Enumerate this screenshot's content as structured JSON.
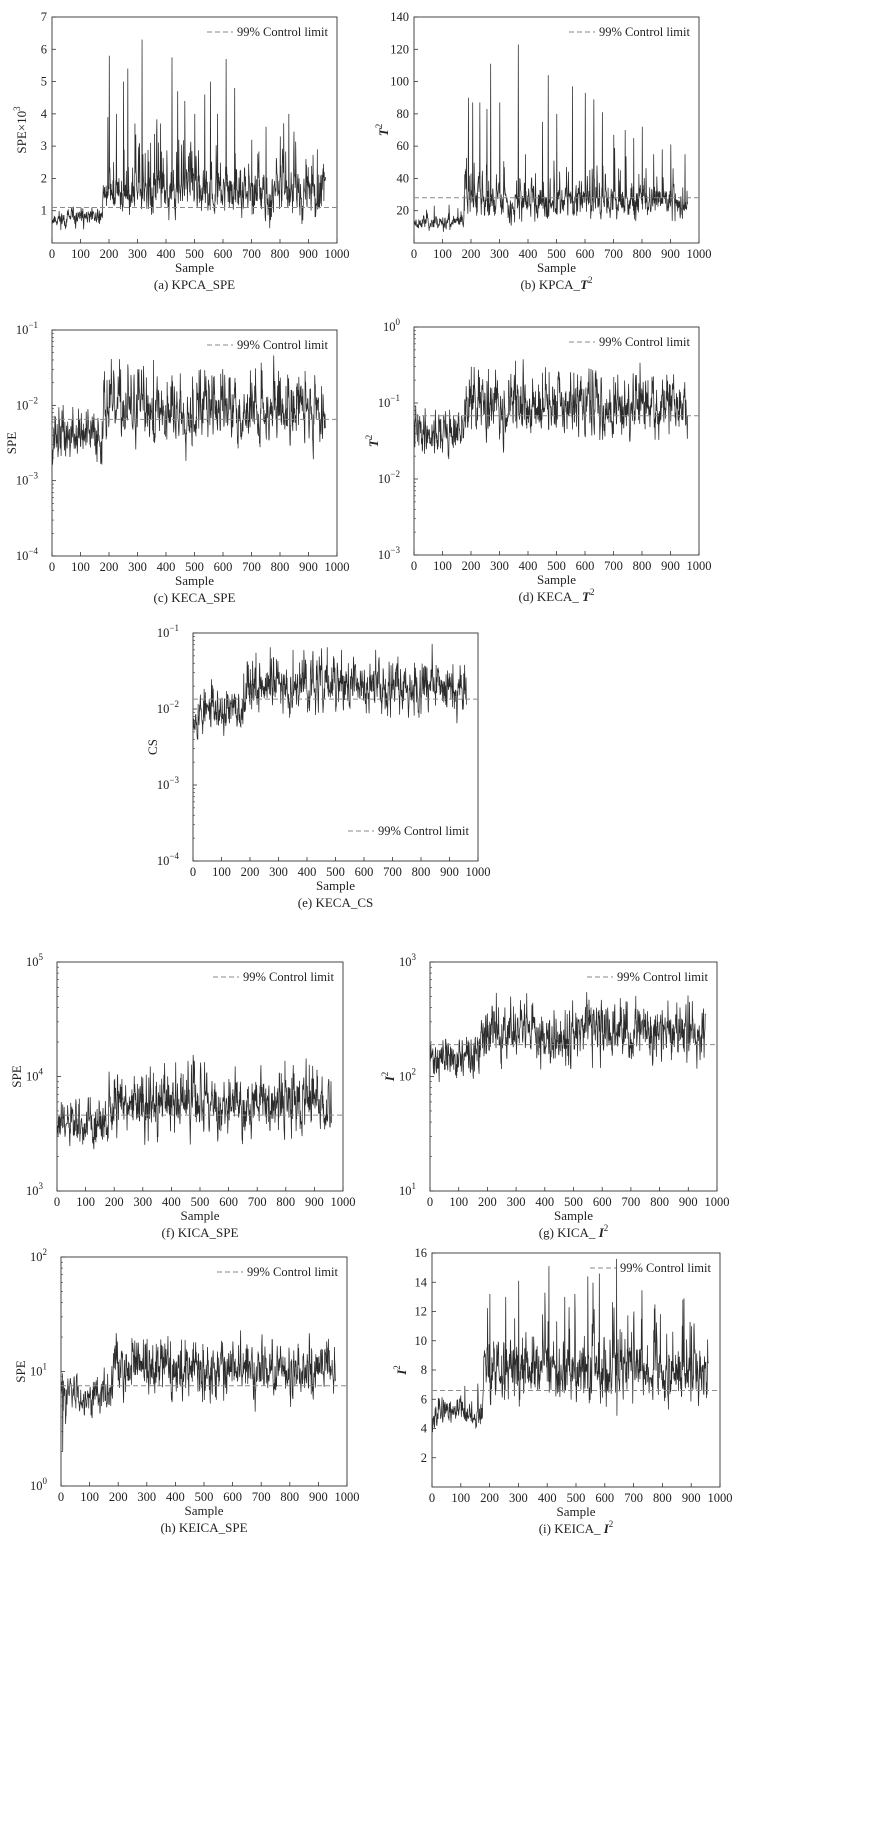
{
  "figure": {
    "colors": {
      "series": "#2b2b2b",
      "limit": "#8a8a8a",
      "axis": "#333333"
    },
    "legend_label": "99% Control limit",
    "xlabel": "Sample"
  },
  "chart_data": [
    {
      "id": "a",
      "type": "line",
      "scale": "linear",
      "caption": "(a) KPCA_SPE",
      "xlabel": "Sample",
      "ylabel": "SPE×10",
      "ylabel_sup": "3",
      "ylabel_italic": false,
      "xlim": [
        0,
        1000
      ],
      "ylim": [
        0,
        7
      ],
      "xticks": [
        "0",
        "100",
        "200",
        "300",
        "400",
        "500",
        "600",
        "700",
        "800",
        "900",
        "1000"
      ],
      "yticks": [
        {
          "v": 1,
          "t": "1"
        },
        {
          "v": 2,
          "t": "2"
        },
        {
          "v": 3,
          "t": "3"
        },
        {
          "v": 4,
          "t": "4"
        },
        {
          "v": 5,
          "t": "5"
        },
        {
          "v": 6,
          "t": "6"
        },
        {
          "v": 7,
          "t": "7"
        }
      ],
      "legend": {
        "label": "99% Control limit",
        "position": "top-right"
      },
      "control_limit": 1.1,
      "n": 960,
      "seed": 11,
      "phase1": {
        "end": 175,
        "base": 0.75,
        "spread": 0.5
      },
      "phase2": {
        "base": 1.5,
        "spread": 1.2
      },
      "peaks": [
        [
          195,
          3.9
        ],
        [
          200,
          5.8
        ],
        [
          225,
          4.0
        ],
        [
          250,
          5.0
        ],
        [
          265,
          5.4
        ],
        [
          290,
          3.7
        ],
        [
          315,
          6.3
        ],
        [
          345,
          3.1
        ],
        [
          380,
          3.7
        ],
        [
          420,
          5.75
        ],
        [
          440,
          4.7
        ],
        [
          465,
          4.4
        ],
        [
          500,
          4.0
        ],
        [
          535,
          4.6
        ],
        [
          555,
          5.0
        ],
        [
          580,
          4.0
        ],
        [
          610,
          5.7
        ],
        [
          640,
          4.8
        ],
        [
          700,
          3.2
        ],
        [
          750,
          3.6
        ],
        [
          800,
          3.3
        ],
        [
          830,
          4.0
        ],
        [
          890,
          2.6
        ],
        [
          930,
          2.9
        ]
      ],
      "series": [
        {
          "name": "99% Control limit"
        }
      ]
    },
    {
      "id": "b",
      "type": "line",
      "scale": "linear",
      "caption": "(b) KPCA_",
      "caption_bold": "T",
      "caption_sup": "2",
      "xlabel": "Sample",
      "ylabel": "T",
      "ylabel_sup": "2",
      "ylabel_italic": true,
      "xlim": [
        0,
        1000
      ],
      "ylim": [
        0,
        140
      ],
      "xticks": [
        "0",
        "100",
        "200",
        "300",
        "400",
        "500",
        "600",
        "700",
        "800",
        "900",
        "1000"
      ],
      "yticks": [
        {
          "v": 20,
          "t": "20"
        },
        {
          "v": 40,
          "t": "40"
        },
        {
          "v": 60,
          "t": "60"
        },
        {
          "v": 80,
          "t": "80"
        },
        {
          "v": 100,
          "t": "100"
        },
        {
          "v": 120,
          "t": "120"
        },
        {
          "v": 140,
          "t": "140"
        }
      ],
      "legend": {
        "label": "99% Control limit",
        "position": "top-right"
      },
      "control_limit": 28,
      "n": 960,
      "seed": 23,
      "phase1": {
        "end": 175,
        "base": 13,
        "spread": 8
      },
      "phase2": {
        "base": 25,
        "spread": 18
      },
      "peaks": [
        [
          190,
          90
        ],
        [
          205,
          87
        ],
        [
          230,
          87
        ],
        [
          255,
          83
        ],
        [
          268,
          111
        ],
        [
          300,
          87
        ],
        [
          365,
          123
        ],
        [
          390,
          55
        ],
        [
          450,
          75
        ],
        [
          470,
          104
        ],
        [
          500,
          80
        ],
        [
          555,
          97
        ],
        [
          600,
          93
        ],
        [
          630,
          89
        ],
        [
          660,
          81
        ],
        [
          700,
          67
        ],
        [
          740,
          70
        ],
        [
          770,
          65
        ],
        [
          800,
          72
        ],
        [
          840,
          55
        ],
        [
          870,
          58
        ],
        [
          900,
          61
        ],
        [
          950,
          55
        ]
      ],
      "series": [
        {
          "name": "99% Control limit"
        }
      ]
    },
    {
      "id": "c",
      "type": "line",
      "scale": "log",
      "caption": "(c) KECA_SPE",
      "xlabel": "Sample",
      "ylabel": "SPE",
      "ylabel_sup": "",
      "ylabel_italic": false,
      "xlim": [
        0,
        1000
      ],
      "ylim": [
        0.0001,
        0.1
      ],
      "xticks": [
        "0",
        "100",
        "200",
        "300",
        "400",
        "500",
        "600",
        "700",
        "800",
        "900",
        "1000"
      ],
      "yticks": [
        {
          "v": 0.0001,
          "t": "10",
          "s": "−4"
        },
        {
          "v": 0.001,
          "t": "10",
          "s": "−3"
        },
        {
          "v": 0.01,
          "t": "10",
          "s": "−2"
        },
        {
          "v": 0.1,
          "t": "10",
          "s": "−1"
        }
      ],
      "legend": {
        "label": "99% Control limit",
        "position": "top-right"
      },
      "control_limit": 0.0065,
      "n": 960,
      "seed": 37,
      "phase1": {
        "end": 175,
        "base": 0.0035,
        "spread": 0.35
      },
      "phase2": {
        "base": 0.0075,
        "spread": 0.45
      },
      "peaks": [
        [
          200,
          0.022
        ],
        [
          240,
          0.03
        ],
        [
          265,
          0.035
        ],
        [
          300,
          0.03
        ],
        [
          355,
          0.04
        ],
        [
          420,
          0.025
        ],
        [
          520,
          0.03
        ],
        [
          560,
          0.025
        ],
        [
          620,
          0.022
        ],
        [
          700,
          0.02
        ],
        [
          820,
          0.018
        ],
        [
          950,
          0.014
        ]
      ],
      "series": [
        {
          "name": "99% Control limit"
        }
      ]
    },
    {
      "id": "d",
      "type": "line",
      "scale": "log",
      "caption": "(d) KECA_ ",
      "caption_bold": "T",
      "caption_sup": "2",
      "xlabel": "Sample",
      "ylabel": "T",
      "ylabel_sup": "2",
      "ylabel_italic": true,
      "xlim": [
        0,
        1000
      ],
      "ylim": [
        0.001,
        1
      ],
      "xticks": [
        "0",
        "100",
        "200",
        "300",
        "400",
        "500",
        "600",
        "700",
        "800",
        "900",
        "1000"
      ],
      "yticks": [
        {
          "v": 0.001,
          "t": "10",
          "s": "−3"
        },
        {
          "v": 0.01,
          "t": "10",
          "s": "−2"
        },
        {
          "v": 0.1,
          "t": "10",
          "s": "−1"
        },
        {
          "v": 1,
          "t": "10",
          "s": "0"
        }
      ],
      "legend": {
        "label": "99% Control limit",
        "position": "top-right"
      },
      "control_limit": 0.068,
      "n": 960,
      "seed": 41,
      "phase1": {
        "end": 175,
        "base": 0.038,
        "spread": 0.3
      },
      "phase2": {
        "base": 0.075,
        "spread": 0.4
      },
      "peaks": [
        [
          200,
          0.3
        ],
        [
          260,
          0.28
        ],
        [
          355,
          0.36
        ],
        [
          450,
          0.25
        ],
        [
          560,
          0.25
        ],
        [
          620,
          0.28
        ],
        [
          700,
          0.22
        ],
        [
          820,
          0.2
        ],
        [
          930,
          0.15
        ]
      ],
      "series": [
        {
          "name": "99% Control limit"
        }
      ]
    },
    {
      "id": "e",
      "type": "line",
      "scale": "log",
      "caption": "(e) KECA_CS",
      "xlabel": "Sample",
      "ylabel": "CS",
      "ylabel_sup": "",
      "ylabel_italic": false,
      "xlim": [
        0,
        1000
      ],
      "ylim": [
        0.0001,
        0.1
      ],
      "xticks": [
        "0",
        "100",
        "200",
        "300",
        "400",
        "500",
        "600",
        "700",
        "800",
        "900",
        "1000"
      ],
      "yticks": [
        {
          "v": 0.0001,
          "t": "10",
          "s": "−4"
        },
        {
          "v": 0.001,
          "t": "10",
          "s": "−3"
        },
        {
          "v": 0.01,
          "t": "10",
          "s": "−2"
        },
        {
          "v": 0.1,
          "t": "10",
          "s": "−1"
        }
      ],
      "legend": {
        "label": "99% Control limit",
        "position": "bottom-right"
      },
      "control_limit": 0.0135,
      "n": 960,
      "seed": 53,
      "phase1": {
        "end": 175,
        "base": 0.0085,
        "spread": 0.3
      },
      "phase2": {
        "base": 0.018,
        "spread": 0.35
      },
      "peaks": [
        [
          220,
          0.055
        ],
        [
          270,
          0.065
        ],
        [
          350,
          0.06
        ],
        [
          420,
          0.058
        ],
        [
          470,
          0.065
        ],
        [
          520,
          0.06
        ],
        [
          640,
          0.06
        ],
        [
          700,
          0.04
        ],
        [
          820,
          0.035
        ],
        [
          940,
          0.028
        ]
      ],
      "series": [
        {
          "name": "99% Control limit"
        }
      ]
    },
    {
      "id": "f",
      "type": "line",
      "scale": "log",
      "caption": "(f) KICA_SPE",
      "xlabel": "Sample",
      "ylabel": "SPE",
      "ylabel_sup": "",
      "ylabel_italic": false,
      "xlim": [
        0,
        1000
      ],
      "ylim": [
        1000,
        100000
      ],
      "xticks": [
        "0",
        "100",
        "200",
        "300",
        "400",
        "500",
        "600",
        "700",
        "800",
        "900",
        "1000"
      ],
      "yticks": [
        {
          "v": 1000,
          "t": "10",
          "s": "3"
        },
        {
          "v": 10000,
          "t": "10",
          "s": "4"
        },
        {
          "v": 100000,
          "t": "10",
          "s": "5"
        }
      ],
      "legend": {
        "label": "99% Control limit",
        "position": "top-right"
      },
      "control_limit": 4600,
      "n": 960,
      "seed": 61,
      "phase1": {
        "end": 175,
        "base": 3500,
        "spread": 0.22
      },
      "phase2": {
        "base": 5400,
        "spread": 0.28
      },
      "peaks": [
        [
          210,
          9600
        ],
        [
          320,
          9800
        ],
        [
          440,
          10500
        ],
        [
          500,
          11000
        ],
        [
          600,
          9500
        ],
        [
          640,
          9000
        ],
        [
          760,
          8200
        ],
        [
          900,
          7000
        ]
      ],
      "series": [
        {
          "name": "99% Control limit"
        }
      ]
    },
    {
      "id": "g",
      "type": "line",
      "scale": "log",
      "caption": "(g) KICA_ ",
      "caption_bold": "I",
      "caption_sup": "2",
      "xlabel": "Sample",
      "ylabel": "I",
      "ylabel_sup": "2",
      "ylabel_italic": true,
      "xlim": [
        0,
        1000
      ],
      "ylim": [
        10,
        1000
      ],
      "xticks": [
        "0",
        "100",
        "200",
        "300",
        "400",
        "500",
        "600",
        "700",
        "800",
        "900",
        "1000"
      ],
      "yticks": [
        {
          "v": 10,
          "t": "10",
          "s": "1"
        },
        {
          "v": 100,
          "t": "10",
          "s": "2"
        },
        {
          "v": 1000,
          "t": "10",
          "s": "3"
        }
      ],
      "legend": {
        "label": "99% Control limit",
        "position": "top-right"
      },
      "control_limit": 190,
      "n": 960,
      "seed": 71,
      "phase1": {
        "end": 175,
        "base": 140,
        "spread": 0.18
      },
      "phase2": {
        "base": 225,
        "spread": 0.25
      },
      "peaks": [
        [
          260,
          400
        ],
        [
          290,
          410
        ],
        [
          470,
          380
        ],
        [
          560,
          400
        ],
        [
          600,
          380
        ],
        [
          640,
          370
        ],
        [
          800,
          300
        ]
      ],
      "series": [
        {
          "name": "99% Control limit"
        }
      ]
    },
    {
      "id": "h",
      "type": "line",
      "scale": "log",
      "caption": "(h) KEICA_SPE",
      "xlabel": "Sample",
      "ylabel": "SPE",
      "ylabel_sup": "",
      "ylabel_italic": false,
      "xlim": [
        0,
        1000
      ],
      "ylim": [
        1,
        100
      ],
      "xticks": [
        "0",
        "100",
        "200",
        "300",
        "400",
        "500",
        "600",
        "700",
        "800",
        "900",
        "1000"
      ],
      "yticks": [
        {
          "v": 1,
          "t": "10",
          "s": "0"
        },
        {
          "v": 10,
          "t": "10",
          "s": "1"
        },
        {
          "v": 100,
          "t": "10",
          "s": "2"
        }
      ],
      "legend": {
        "label": "99% Control limit",
        "position": "top-right"
      },
      "control_limit": 7.5,
      "n": 960,
      "seed": 83,
      "phase1": {
        "end": 175,
        "base": 6.2,
        "spread": 0.18
      },
      "phase2": {
        "base": 10,
        "spread": 0.25
      },
      "peaks": [
        [
          5,
          2.0
        ],
        [
          210,
          15
        ],
        [
          320,
          17
        ],
        [
          420,
          19
        ],
        [
          470,
          18
        ],
        [
          560,
          18.5
        ],
        [
          620,
          17
        ],
        [
          700,
          14
        ],
        [
          900,
          13
        ]
      ],
      "series": [
        {
          "name": "99% Control limit"
        }
      ]
    },
    {
      "id": "i",
      "type": "line",
      "scale": "linear",
      "caption": "(i) KEICA_ ",
      "caption_bold": "I",
      "caption_sup": "2",
      "xlabel": "Sample",
      "ylabel": "I",
      "ylabel_sup": "2",
      "ylabel_italic": true,
      "xlim": [
        0,
        1000
      ],
      "ylim": [
        0,
        16
      ],
      "xticks": [
        "0",
        "100",
        "200",
        "300",
        "400",
        "500",
        "600",
        "700",
        "800",
        "900",
        "1000"
      ],
      "yticks": [
        {
          "v": 2,
          "t": "2"
        },
        {
          "v": 4,
          "t": "4"
        },
        {
          "v": 6,
          "t": "6"
        },
        {
          "v": 8,
          "t": "8"
        },
        {
          "v": 10,
          "t": "10"
        },
        {
          "v": 12,
          "t": "12"
        },
        {
          "v": 14,
          "t": "14"
        },
        {
          "v": 16,
          "t": "16"
        }
      ],
      "legend": {
        "label": "99% Control limit",
        "position": "top-right"
      },
      "control_limit": 6.6,
      "n": 960,
      "seed": 97,
      "phase1": {
        "end": 175,
        "base": 5.0,
        "spread": 1.6
      },
      "phase2": {
        "base": 7.8,
        "spread": 3.5
      },
      "peaks": [
        [
          200,
          13.2
        ],
        [
          255,
          13.0
        ],
        [
          300,
          14.1
        ],
        [
          405,
          15.1
        ],
        [
          460,
          13.0
        ],
        [
          540,
          14.4
        ],
        [
          580,
          14.6
        ],
        [
          640,
          15.6
        ],
        [
          700,
          12.0
        ],
        [
          870,
          12.8
        ],
        [
          900,
          11.0
        ]
      ],
      "series": [
        {
          "name": "99% Control limit"
        }
      ]
    }
  ]
}
